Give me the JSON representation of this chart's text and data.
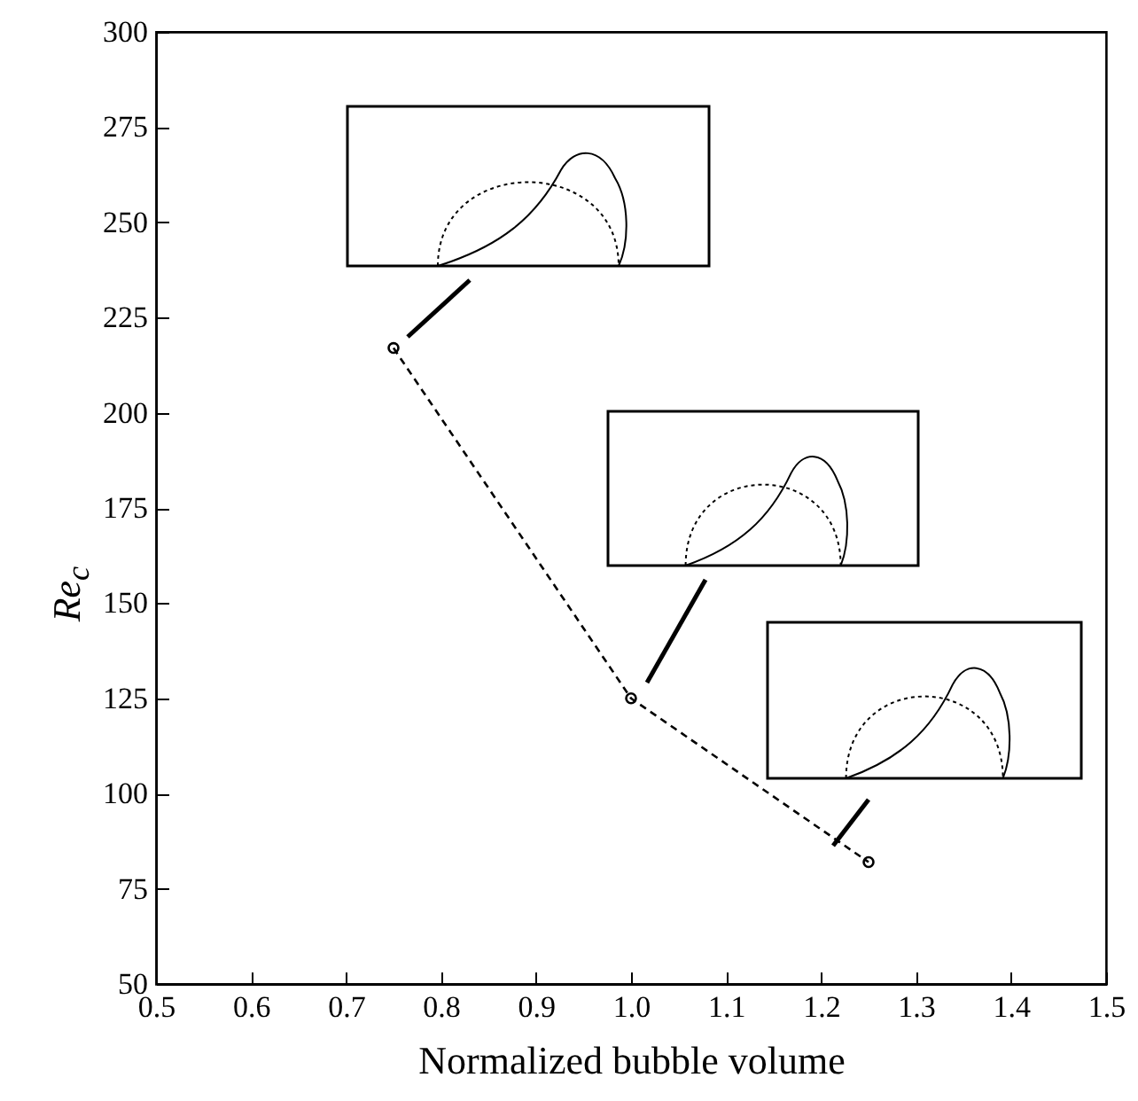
{
  "chart_data": {
    "type": "line",
    "xlabel": "Normalized bubble volume",
    "ylabel": "Re$_{c}$",
    "x": [
      0.75,
      1.0,
      1.25
    ],
    "series": [
      {
        "color": "#000000",
        "values": [
          217,
          125,
          82
        ]
      }
    ],
    "xlim": [
      0.5,
      1.5
    ],
    "ylim": [
      50,
      300
    ],
    "xticks": [
      {
        "value": 0.5,
        "label": "0.5"
      },
      {
        "value": 0.6,
        "label": "0.6"
      },
      {
        "value": 0.7,
        "label": "0.7"
      },
      {
        "value": 0.8,
        "label": "0.8"
      },
      {
        "value": 0.9,
        "label": "0.9"
      },
      {
        "value": 1,
        "label": "1.0"
      },
      {
        "value": 1.1,
        "label": "1.1"
      },
      {
        "value": 1.2,
        "label": "1.2"
      },
      {
        "value": 1.3,
        "label": "1.3"
      },
      {
        "value": 1.4,
        "label": "1.4"
      },
      {
        "value": 1.5,
        "label": "1.5"
      }
    ],
    "yticks": [
      50,
      75,
      100,
      125,
      150,
      175,
      200,
      225,
      250,
      275,
      300
    ],
    "marker": "circle",
    "line_style": "dashed",
    "grid": false
  }
}
